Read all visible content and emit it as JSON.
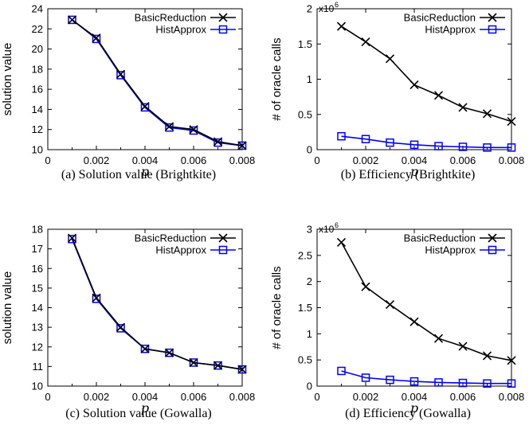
{
  "chart_data": [
    {
      "type": "line",
      "caption": "(a) Solution value (Brightkite)",
      "ylabel": "solution value",
      "xlabel": "p",
      "xlim": [
        0,
        0.008
      ],
      "ylim": [
        10,
        24
      ],
      "xticks": [
        "0",
        "0.002",
        "0.004",
        "0.006",
        "0.008"
      ],
      "xtick_values": [
        0,
        0.002,
        0.004,
        0.006,
        0.008
      ],
      "yticks": [
        "10",
        "12",
        "14",
        "16",
        "18",
        "20",
        "22",
        "24"
      ],
      "ytick_values": [
        10,
        12,
        14,
        16,
        18,
        20,
        22,
        24
      ],
      "multiplier": "",
      "legend_position": "top-right",
      "x": [
        0.001,
        0.002,
        0.003,
        0.004,
        0.005,
        0.006,
        0.007,
        0.008
      ],
      "series": [
        {
          "name": "BasicReduction",
          "color": "#000000",
          "marker": "x",
          "values": [
            22.9,
            21.1,
            17.5,
            14.3,
            12.3,
            12.0,
            10.8,
            10.4
          ]
        },
        {
          "name": "HistApprox",
          "color": "#0000ff",
          "marker": "square",
          "values": [
            22.9,
            21.0,
            17.4,
            14.2,
            12.2,
            11.9,
            10.7,
            10.4
          ]
        }
      ]
    },
    {
      "type": "line",
      "caption": "(b) Efficiency (Brightkite)",
      "ylabel": "# of oracle calls",
      "xlabel": "p",
      "xlim": [
        0,
        0.008
      ],
      "ylim": [
        0,
        2
      ],
      "xticks": [
        "0",
        "0.002",
        "0.004",
        "0.006",
        "0.008"
      ],
      "xtick_values": [
        0,
        0.002,
        0.004,
        0.006,
        0.008
      ],
      "yticks": [
        "0",
        "0.5",
        "1",
        "1.5",
        "2"
      ],
      "ytick_values": [
        0,
        0.5,
        1,
        1.5,
        2
      ],
      "multiplier": "x10",
      "multiplier_exp": "6",
      "legend_position": "top-right",
      "x": [
        0.001,
        0.002,
        0.003,
        0.004,
        0.005,
        0.006,
        0.007,
        0.008
      ],
      "series": [
        {
          "name": "BasicReduction",
          "color": "#000000",
          "marker": "x",
          "values": [
            1.75,
            1.53,
            1.29,
            0.92,
            0.77,
            0.6,
            0.51,
            0.4
          ]
        },
        {
          "name": "HistApprox",
          "color": "#0000ff",
          "marker": "square",
          "values": [
            0.19,
            0.15,
            0.1,
            0.07,
            0.05,
            0.04,
            0.03,
            0.03
          ]
        }
      ]
    },
    {
      "type": "line",
      "caption": "(c) Solution value (Gowalla)",
      "ylabel": "solution value",
      "xlabel": "p",
      "xlim": [
        0,
        0.008
      ],
      "ylim": [
        10,
        18
      ],
      "xticks": [
        "0",
        "0.002",
        "0.004",
        "0.006",
        "0.008"
      ],
      "xtick_values": [
        0,
        0.002,
        0.004,
        0.006,
        0.008
      ],
      "yticks": [
        "10",
        "11",
        "12",
        "13",
        "14",
        "15",
        "16",
        "17",
        "18"
      ],
      "ytick_values": [
        10,
        11,
        12,
        13,
        14,
        15,
        16,
        17,
        18
      ],
      "multiplier": "",
      "legend_position": "top-right",
      "x": [
        0.001,
        0.002,
        0.003,
        0.004,
        0.005,
        0.006,
        0.007,
        0.008
      ],
      "series": [
        {
          "name": "BasicReduction",
          "color": "#000000",
          "marker": "x",
          "values": [
            17.55,
            14.5,
            13.0,
            11.9,
            11.7,
            11.2,
            11.05,
            10.85
          ]
        },
        {
          "name": "HistApprox",
          "color": "#0000ff",
          "marker": "square",
          "values": [
            17.5,
            14.45,
            12.95,
            11.9,
            11.7,
            11.2,
            11.05,
            10.85
          ]
        }
      ]
    },
    {
      "type": "line",
      "caption": "(d) Efficiency (Gowalla)",
      "ylabel": "# of oracle calls",
      "xlabel": "p",
      "xlim": [
        0,
        0.008
      ],
      "ylim": [
        0,
        3
      ],
      "xticks": [
        "0",
        "0.002",
        "0.004",
        "0.006",
        "0.008"
      ],
      "xtick_values": [
        0,
        0.002,
        0.004,
        0.006,
        0.008
      ],
      "yticks": [
        "0",
        "0.5",
        "1",
        "1.5",
        "2",
        "2.5",
        "3"
      ],
      "ytick_values": [
        0,
        0.5,
        1,
        1.5,
        2,
        2.5,
        3
      ],
      "multiplier": "x10",
      "multiplier_exp": "6",
      "legend_position": "top-right",
      "x": [
        0.001,
        0.002,
        0.003,
        0.004,
        0.005,
        0.006,
        0.007,
        0.008
      ],
      "series": [
        {
          "name": "BasicReduction",
          "color": "#000000",
          "marker": "x",
          "values": [
            2.75,
            1.9,
            1.56,
            1.23,
            0.91,
            0.76,
            0.58,
            0.49
          ]
        },
        {
          "name": "HistApprox",
          "color": "#0000ff",
          "marker": "square",
          "values": [
            0.29,
            0.16,
            0.12,
            0.09,
            0.07,
            0.06,
            0.05,
            0.05
          ]
        }
      ]
    }
  ]
}
